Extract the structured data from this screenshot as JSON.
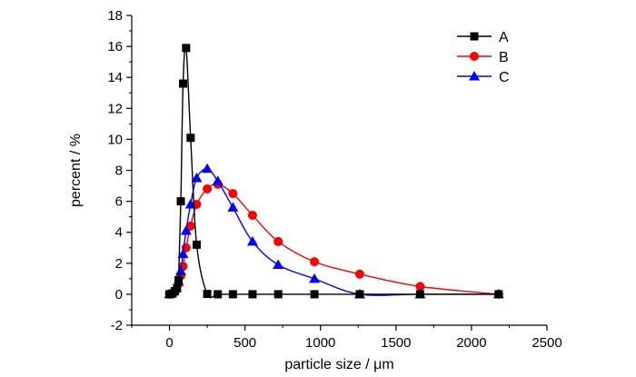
{
  "chart_data": {
    "type": "line",
    "title": "",
    "xlabel": "particle size / μm",
    "ylabel": "percent / %",
    "xlim": [
      -250,
      2500
    ],
    "ylim": [
      -2,
      18
    ],
    "xticks": [
      0,
      500,
      1000,
      1500,
      2000,
      2500
    ],
    "yticks": [
      -2,
      0,
      2,
      4,
      6,
      8,
      10,
      12,
      14,
      16,
      18
    ],
    "grid": false,
    "legend_position": "top-right",
    "series": [
      {
        "name": "A",
        "color": "#000000",
        "marker": "square",
        "x": [
          0,
          20,
          35,
          50,
          60,
          75,
          90,
          110,
          140,
          180,
          250,
          320,
          420,
          550,
          720,
          960,
          1260,
          1660,
          2180
        ],
        "y": [
          0,
          0.05,
          0.2,
          0.4,
          0.9,
          6.0,
          13.6,
          15.9,
          10.1,
          3.2,
          0.02,
          0,
          0,
          0,
          0,
          0,
          0,
          0,
          0
        ]
      },
      {
        "name": "B",
        "color": "#ff0000",
        "marker": "circle",
        "x": [
          0,
          30,
          45,
          60,
          75,
          90,
          110,
          140,
          180,
          250,
          320,
          420,
          550,
          720,
          960,
          1260,
          1660,
          2180
        ],
        "y": [
          0,
          0.1,
          0.3,
          0.7,
          1.2,
          1.8,
          3.0,
          4.4,
          5.8,
          6.8,
          7.1,
          6.5,
          5.1,
          3.4,
          2.1,
          1.3,
          0.5,
          0
        ]
      },
      {
        "name": "C",
        "color": "#0000ff",
        "marker": "triangle",
        "x": [
          0,
          30,
          45,
          60,
          75,
          90,
          110,
          140,
          180,
          250,
          320,
          420,
          550,
          720,
          960,
          1260,
          1660,
          2180
        ],
        "y": [
          0,
          0.2,
          0.4,
          0.8,
          1.5,
          2.6,
          4.1,
          5.8,
          7.5,
          8.1,
          7.3,
          5.6,
          3.4,
          1.9,
          1.0,
          0,
          0,
          0
        ]
      }
    ]
  }
}
